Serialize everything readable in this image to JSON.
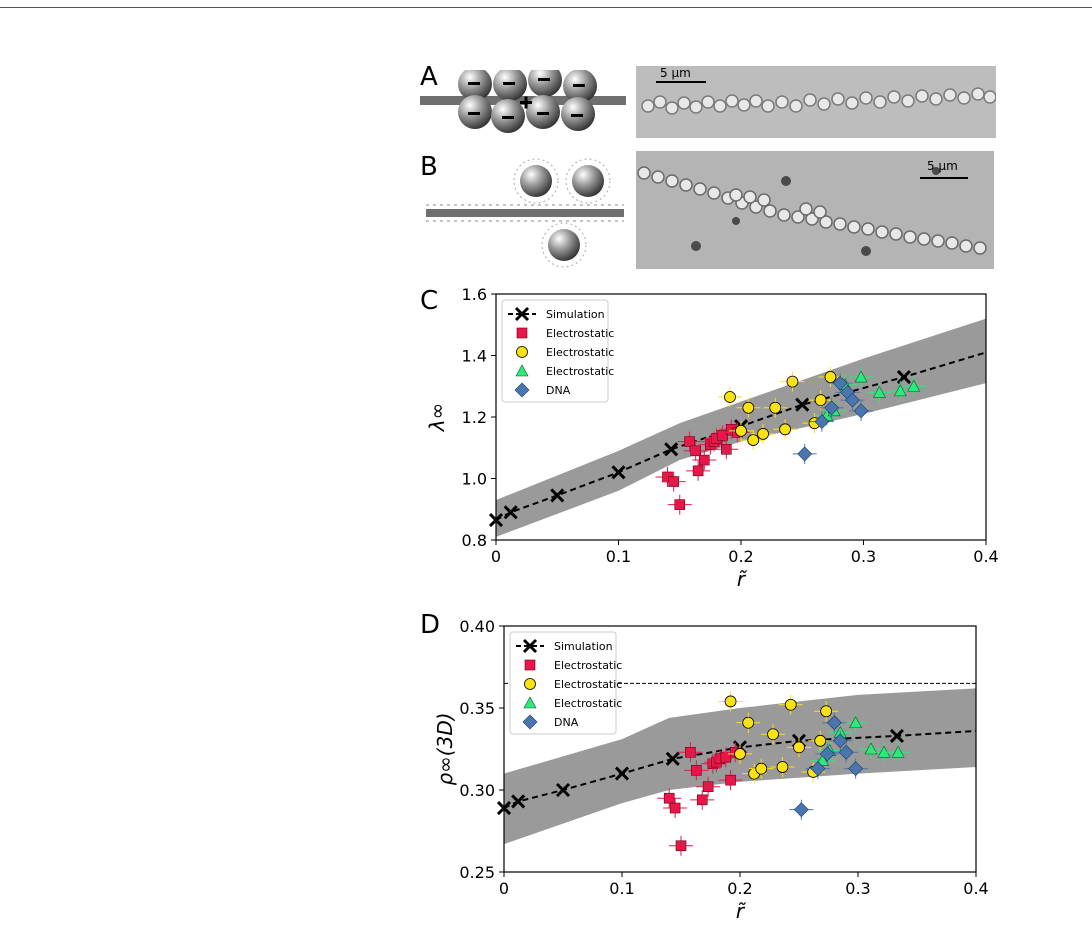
{
  "panels": {
    "a": "A",
    "b": "B",
    "c": "C",
    "d": "D"
  },
  "scalebar_a": "5 μm",
  "scalebar_b": "5 μm",
  "colors": {
    "simulation": "#000000",
    "electrostatic_red": "#e8174a",
    "electrostatic_yellow": "#fde213",
    "electrostatic_green": "#2ee879",
    "dna": "#4a76b0",
    "band": "#9a9a9a"
  },
  "chart_data": [
    {
      "type": "scatter",
      "xlabel": "r̃",
      "ylabel": "λ∞",
      "xlim": [
        0,
        0.4
      ],
      "ylim": [
        0.8,
        1.6
      ],
      "xticks": [
        "0",
        "0.1",
        "0.2",
        "0.3",
        "0.4"
      ],
      "yticks": [
        "0.8",
        "1.0",
        "1.2",
        "1.4",
        "1.6"
      ],
      "legend_position": "top-left",
      "band": {
        "x": [
          0,
          0.1,
          0.15,
          0.2,
          0.3,
          0.4
        ],
        "lower": [
          0.81,
          0.96,
          1.06,
          1.12,
          1.21,
          1.31
        ],
        "upper": [
          0.93,
          1.09,
          1.18,
          1.25,
          1.39,
          1.52
        ]
      },
      "series": [
        {
          "name": "Simulation",
          "marker": "x",
          "color": "#000000",
          "line": "dashed",
          "points": [
            [
              0,
              0.865
            ],
            [
              0.012,
              0.89
            ],
            [
              0.05,
              0.945
            ],
            [
              0.1,
              1.02
            ],
            [
              0.143,
              1.095
            ],
            [
              0.2,
              1.17
            ],
            [
              0.25,
              1.24
            ],
            [
              0.333,
              1.33
            ],
            [
              0.4,
              1.41
            ]
          ]
        },
        {
          "name": "Electrostatic",
          "marker": "square",
          "color": "#e8174a",
          "points": [
            [
              0.15,
              0.915
            ],
            [
              0.14,
              1.005
            ],
            [
              0.145,
              0.99
            ],
            [
              0.158,
              1.12
            ],
            [
              0.163,
              1.09
            ],
            [
              0.165,
              1.025
            ],
            [
              0.17,
              1.06
            ],
            [
              0.175,
              1.11
            ],
            [
              0.178,
              1.12
            ],
            [
              0.18,
              1.13
            ],
            [
              0.185,
              1.14
            ],
            [
              0.188,
              1.095
            ],
            [
              0.192,
              1.16
            ],
            [
              0.197,
              1.15
            ]
          ]
        },
        {
          "name": "Electrostatic",
          "marker": "circle",
          "color": "#fde213",
          "points": [
            [
              0.191,
              1.265
            ],
            [
              0.2,
              1.155
            ],
            [
              0.206,
              1.23
            ],
            [
              0.21,
              1.125
            ],
            [
              0.218,
              1.145
            ],
            [
              0.228,
              1.23
            ],
            [
              0.236,
              1.16
            ],
            [
              0.242,
              1.315
            ],
            [
              0.26,
              1.18
            ],
            [
              0.265,
              1.255
            ],
            [
              0.273,
              1.33
            ]
          ]
        },
        {
          "name": "Electrostatic",
          "marker": "triangle",
          "color": "#2ee879",
          "points": [
            [
              0.27,
              1.205
            ],
            [
              0.276,
              1.22
            ],
            [
              0.285,
              1.305
            ],
            [
              0.298,
              1.33
            ],
            [
              0.313,
              1.28
            ],
            [
              0.33,
              1.285
            ],
            [
              0.341,
              1.3
            ]
          ]
        },
        {
          "name": "DNA",
          "marker": "diamond",
          "color": "#4a76b0",
          "points": [
            [
              0.252,
              1.08
            ],
            [
              0.266,
              1.185
            ],
            [
              0.274,
              1.23
            ],
            [
              0.281,
              1.31
            ],
            [
              0.287,
              1.28
            ],
            [
              0.291,
              1.255
            ],
            [
              0.298,
              1.22
            ]
          ]
        }
      ]
    },
    {
      "type": "scatter",
      "xlabel": "r̃",
      "ylabel": "ρ∞(3D)",
      "xlim": [
        0,
        0.4
      ],
      "ylim": [
        0.25,
        0.4
      ],
      "xticks": [
        "0",
        "0.1",
        "0.2",
        "0.3",
        "0.4"
      ],
      "yticks": [
        "0.25",
        "0.30",
        "0.35",
        "0.40"
      ],
      "reference_line_y": 0.365,
      "legend_position": "top-left",
      "band": {
        "x": [
          0,
          0.1,
          0.14,
          0.2,
          0.3,
          0.4
        ],
        "lower": [
          0.267,
          0.292,
          0.3,
          0.305,
          0.31,
          0.314
        ],
        "upper": [
          0.31,
          0.331,
          0.344,
          0.35,
          0.358,
          0.362
        ]
      },
      "series": [
        {
          "name": "Simulation",
          "marker": "x",
          "color": "#000000",
          "line": "dashed",
          "points": [
            [
              0,
              0.289
            ],
            [
              0.012,
              0.293
            ],
            [
              0.05,
              0.3
            ],
            [
              0.1,
              0.31
            ],
            [
              0.143,
              0.319
            ],
            [
              0.2,
              0.326
            ],
            [
              0.25,
              0.33
            ],
            [
              0.333,
              0.333
            ],
            [
              0.4,
              0.336
            ]
          ]
        },
        {
          "name": "Electrostatic",
          "marker": "square",
          "color": "#e8174a",
          "points": [
            [
              0.15,
              0.266
            ],
            [
              0.14,
              0.295
            ],
            [
              0.145,
              0.289
            ],
            [
              0.158,
              0.323
            ],
            [
              0.163,
              0.312
            ],
            [
              0.168,
              0.294
            ],
            [
              0.173,
              0.302
            ],
            [
              0.177,
              0.316
            ],
            [
              0.18,
              0.317
            ],
            [
              0.183,
              0.319
            ],
            [
              0.188,
              0.32
            ],
            [
              0.192,
              0.306
            ],
            [
              0.196,
              0.323
            ]
          ]
        },
        {
          "name": "Electrostatic",
          "marker": "circle",
          "color": "#fde213",
          "points": [
            [
              0.192,
              0.354
            ],
            [
              0.2,
              0.322
            ],
            [
              0.207,
              0.341
            ],
            [
              0.212,
              0.31
            ],
            [
              0.218,
              0.313
            ],
            [
              0.228,
              0.334
            ],
            [
              0.236,
              0.314
            ],
            [
              0.243,
              0.352
            ],
            [
              0.25,
              0.326
            ],
            [
              0.262,
              0.311
            ],
            [
              0.268,
              0.33
            ],
            [
              0.273,
              0.348
            ]
          ]
        },
        {
          "name": "Electrostatic",
          "marker": "triangle",
          "color": "#2ee879",
          "points": [
            [
              0.27,
              0.318
            ],
            [
              0.276,
              0.324
            ],
            [
              0.285,
              0.335
            ],
            [
              0.298,
              0.341
            ],
            [
              0.311,
              0.325
            ],
            [
              0.322,
              0.323
            ],
            [
              0.334,
              0.323
            ]
          ]
        },
        {
          "name": "DNA",
          "marker": "diamond",
          "color": "#4a76b0",
          "points": [
            [
              0.252,
              0.288
            ],
            [
              0.266,
              0.313
            ],
            [
              0.274,
              0.322
            ],
            [
              0.28,
              0.341
            ],
            [
              0.285,
              0.33
            ],
            [
              0.29,
              0.323
            ],
            [
              0.298,
              0.313
            ]
          ]
        }
      ]
    }
  ]
}
